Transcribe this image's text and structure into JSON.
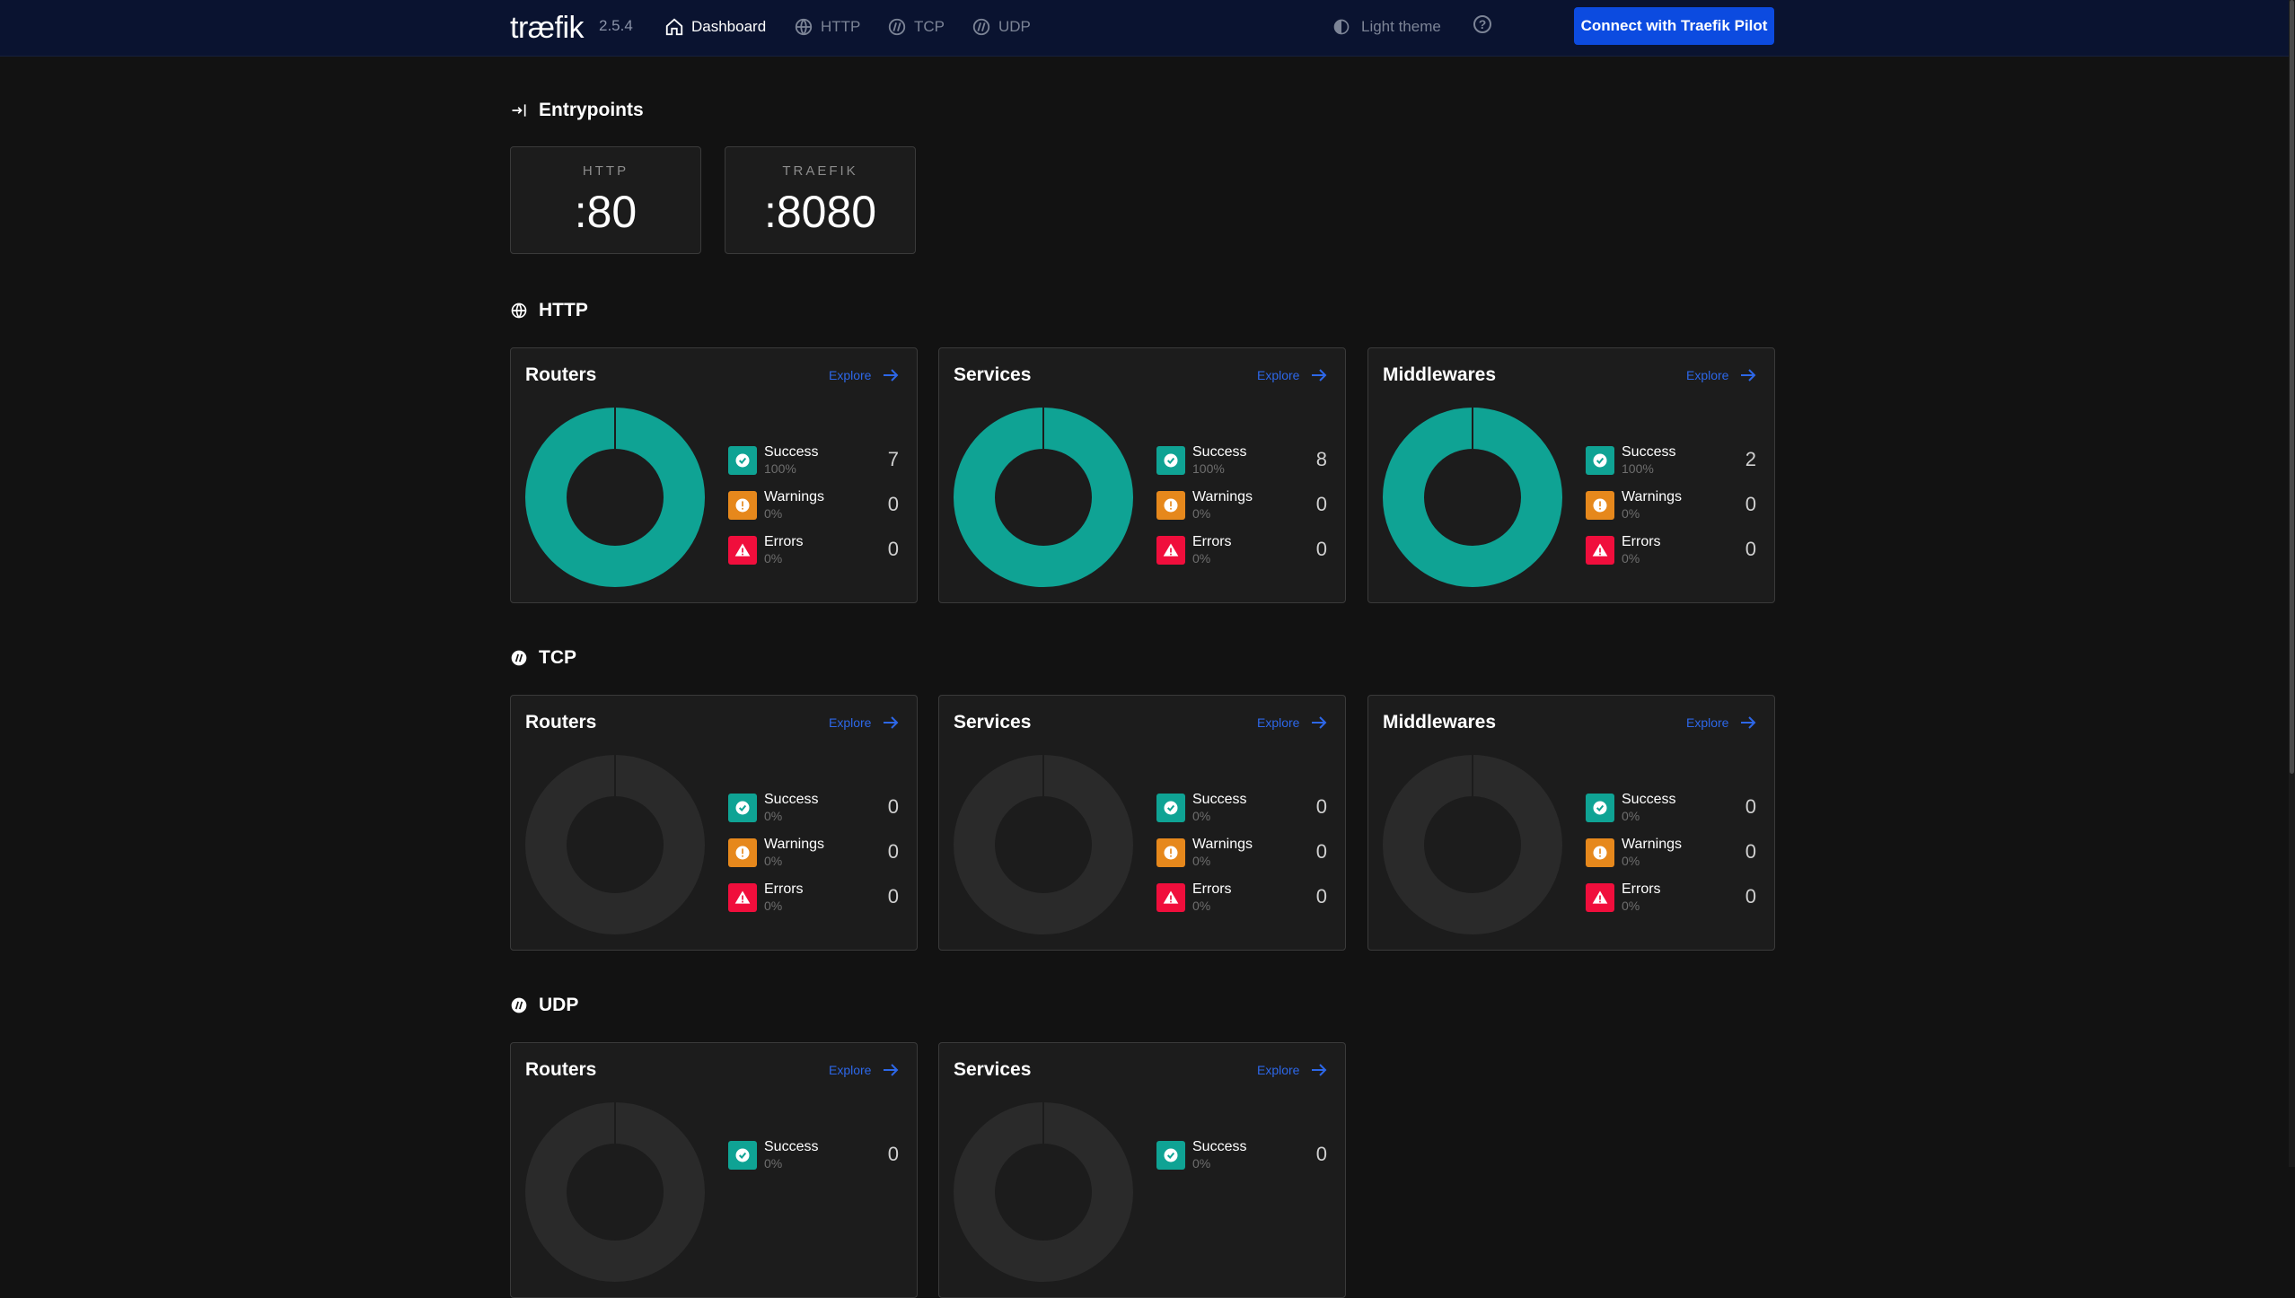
{
  "header": {
    "logo": "træfik",
    "version": "2.5.4",
    "nav": [
      {
        "label": "Dashboard",
        "icon": "home-icon",
        "active": true
      },
      {
        "label": "HTTP",
        "icon": "globe-icon",
        "active": false
      },
      {
        "label": "TCP",
        "icon": "tcp-icon",
        "active": false
      },
      {
        "label": "UDP",
        "icon": "udp-icon",
        "active": false
      }
    ],
    "theme_label": "Light theme",
    "help": "?",
    "pilot_button": "Connect with Traefik Pilot"
  },
  "colors": {
    "success": "#0fa394",
    "warning": "#e6881c",
    "error": "#f00e3c",
    "accent": "#0c4be0",
    "empty_donut": "#2a2a2a"
  },
  "entrypoints": {
    "title": "Entrypoints",
    "items": [
      {
        "name": "HTTP",
        "port": ":80"
      },
      {
        "name": "TRAEFIK",
        "port": ":8080"
      }
    ]
  },
  "labels": {
    "explore": "Explore",
    "success": "Success",
    "warnings": "Warnings",
    "errors": "Errors"
  },
  "http": {
    "title": "HTTP",
    "cards": [
      {
        "title": "Routers",
        "success": {
          "pct": "100%",
          "count": "7"
        },
        "warnings": {
          "pct": "0%",
          "count": "0"
        },
        "errors": {
          "pct": "0%",
          "count": "0"
        }
      },
      {
        "title": "Services",
        "success": {
          "pct": "100%",
          "count": "8"
        },
        "warnings": {
          "pct": "0%",
          "count": "0"
        },
        "errors": {
          "pct": "0%",
          "count": "0"
        }
      },
      {
        "title": "Middlewares",
        "success": {
          "pct": "100%",
          "count": "2"
        },
        "warnings": {
          "pct": "0%",
          "count": "0"
        },
        "errors": {
          "pct": "0%",
          "count": "0"
        }
      }
    ]
  },
  "tcp": {
    "title": "TCP",
    "cards": [
      {
        "title": "Routers",
        "success": {
          "pct": "0%",
          "count": "0"
        },
        "warnings": {
          "pct": "0%",
          "count": "0"
        },
        "errors": {
          "pct": "0%",
          "count": "0"
        }
      },
      {
        "title": "Services",
        "success": {
          "pct": "0%",
          "count": "0"
        },
        "warnings": {
          "pct": "0%",
          "count": "0"
        },
        "errors": {
          "pct": "0%",
          "count": "0"
        }
      },
      {
        "title": "Middlewares",
        "success": {
          "pct": "0%",
          "count": "0"
        },
        "warnings": {
          "pct": "0%",
          "count": "0"
        },
        "errors": {
          "pct": "0%",
          "count": "0"
        }
      }
    ]
  },
  "udp": {
    "title": "UDP",
    "cards": [
      {
        "title": "Routers",
        "success": {
          "pct": "0%",
          "count": "0"
        }
      },
      {
        "title": "Services",
        "success": {
          "pct": "0%",
          "count": "0"
        }
      }
    ]
  }
}
